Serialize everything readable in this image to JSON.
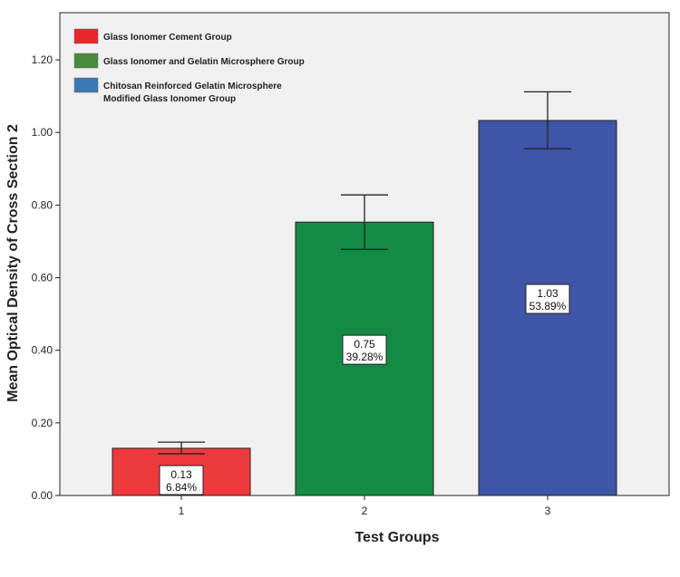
{
  "chart_data": {
    "type": "bar",
    "xlabel": "Test Groups",
    "ylabel": "Mean Optical Density of Cross Section 2",
    "ylim": [
      0,
      1.33
    ],
    "yticks": [
      "0.00",
      "0.20",
      "0.40",
      "0.60",
      "0.80",
      "1.00",
      "1.20"
    ],
    "categories": [
      "1",
      "2",
      "3"
    ],
    "values": [
      0.13,
      0.753,
      1.033
    ],
    "error_low": [
      0.115,
      0.678,
      0.955
    ],
    "error_high": [
      0.147,
      0.828,
      1.112
    ],
    "data_labels": [
      {
        "value": "0.13",
        "percent": "6.84%"
      },
      {
        "value": "0.75",
        "percent": "39.28%"
      },
      {
        "value": "1.03",
        "percent": "53.89%"
      }
    ],
    "legend": [
      {
        "label": "Glass Ionomer Cement Group",
        "color": "#e8262c"
      },
      {
        "label": "Glass Ionomer and Gelatin Microsphere Group",
        "color": "#4a8a3c"
      },
      {
        "label": "Chitosan Reinforced Gelatin Microsphere\nModified Glass Ionomer Group",
        "color": "#3a78b5"
      }
    ],
    "bar_colors": [
      "#ee3a3d",
      "#148b45",
      "#3e55a8"
    ],
    "legend_position": "top-left",
    "grid": false
  }
}
